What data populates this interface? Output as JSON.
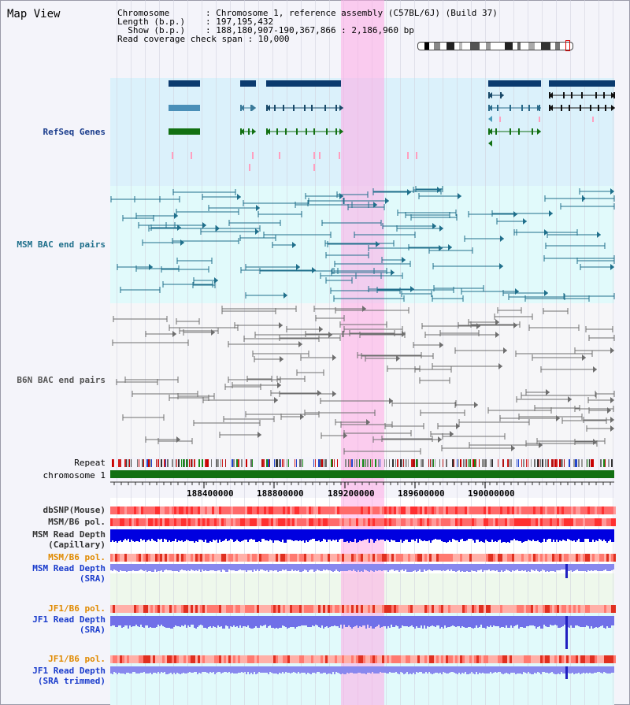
{
  "title": "Map View",
  "info": {
    "chromosome_key": "Chromosome",
    "chromosome_val": ": Chromosome 1, reference assembly (C57BL/6J) (Build 37)",
    "length_key": "Length (b.p.)",
    "length_val": ": 197,195,432",
    "show_key": "  Show (b.p.)",
    "show_val": ": 188,180,907-190,367,866 : 2,186,960 bp",
    "coverage": "Read coverage check span : 10,000"
  },
  "tracks": {
    "refseq": "RefSeq Genes",
    "msm_bac": "MSM BAC end pairs",
    "b6n_bac": "B6N BAC end pairs",
    "repeat": "Repeat",
    "chromosome": "chromosome 1",
    "dbsnp": "dbSNP(Mouse)",
    "msm_b6_pol": "MSM/B6 pol.",
    "msm_rd_cap_1": "MSM Read Depth",
    "msm_rd_cap_2": "(Capillary)",
    "msm_b6_pol_sra": "MSM/B6 pol.",
    "msm_rd_sra_1": "MSM Read Depth",
    "msm_rd_sra_2": "(SRA)",
    "jf1_pol_1": "JF1/B6 pol.",
    "jf1_rd_1": "JF1 Read Depth",
    "jf1_rd_2": "(SRA)",
    "jf1_pol_2": "JF1/B6 pol.",
    "jf1_rdt_1": "JF1 Read Depth",
    "jf1_rdt_2": "(SRA trimmed)"
  },
  "axis": {
    "ticks": [
      "188400000",
      "188800000",
      "189200000",
      "189600000",
      "190000000"
    ]
  },
  "colors": {
    "refseq_bg": "#dff3fb",
    "msm_bg": "#e4fbfb",
    "b6n_bg": "#f4f4f8",
    "msm_color": "#1f6f8b",
    "b6n_color": "#666666",
    "refseq_label": "#1a3c8c",
    "orange_label": "#e08a00",
    "blue_label": "#1a3ccc",
    "highlight": "#ffb3e6"
  }
}
